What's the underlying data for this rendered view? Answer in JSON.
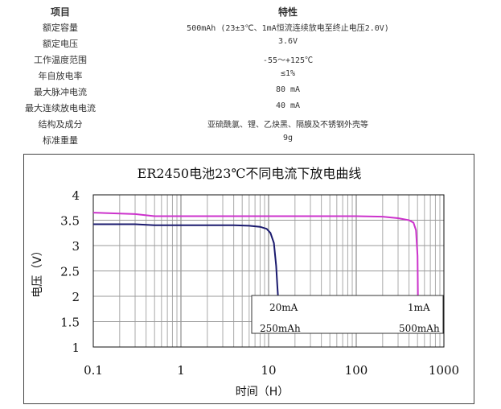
{
  "spec_table": {
    "header": {
      "label": "项目",
      "value": "特性"
    },
    "rows": [
      {
        "label": "额定容量",
        "value": "500mAh (23±3℃、1mA恒流连续放电至终止电压2.0V)"
      },
      {
        "label": "额定电压",
        "value": "3.6V"
      },
      {
        "label": "工作温度范围",
        "value": "-55～+125℃"
      },
      {
        "label": "年自放电率",
        "value": "≤1%"
      },
      {
        "label": "最大脉冲电流",
        "value": "80 mA"
      },
      {
        "label": "最大连续放电电流",
        "value": "40 mA"
      },
      {
        "label": "结构及成分",
        "value": "亚硫酰氯、锂、乙炔黑、隔膜及不锈钢外壳等"
      },
      {
        "label": "标准重量",
        "value": "9g"
      }
    ]
  },
  "chart_data": {
    "type": "line",
    "title": "ER2450电池23℃不同电流下放电曲线",
    "xlabel": "时间（H）",
    "ylabel": "电压（V）",
    "xscale": "log",
    "xlim": [
      0.1,
      1000
    ],
    "ylim": [
      1,
      4
    ],
    "xticks": [
      "0.1",
      "1",
      "10",
      "100",
      "1000"
    ],
    "yticks": [
      "1",
      "1.5",
      "2",
      "2.5",
      "3",
      "3.5",
      "4"
    ],
    "grid": true,
    "series": [
      {
        "name": "20mA",
        "capacity_label": "250mAh",
        "color": "#1a1a6e",
        "points": [
          [
            0.1,
            3.42
          ],
          [
            0.3,
            3.42
          ],
          [
            0.5,
            3.4
          ],
          [
            1,
            3.4
          ],
          [
            2,
            3.4
          ],
          [
            4,
            3.4
          ],
          [
            6,
            3.39
          ],
          [
            8,
            3.37
          ],
          [
            9.5,
            3.33
          ],
          [
            10.5,
            3.25
          ],
          [
            11.5,
            3.05
          ],
          [
            12.2,
            2.6
          ],
          [
            12.6,
            2.2
          ],
          [
            12.8,
            2.0
          ]
        ]
      },
      {
        "name": "1mA",
        "capacity_label": "500mAh",
        "color": "#cc33cc",
        "points": [
          [
            0.1,
            3.65
          ],
          [
            0.3,
            3.62
          ],
          [
            0.5,
            3.58
          ],
          [
            1,
            3.58
          ],
          [
            5,
            3.58
          ],
          [
            20,
            3.58
          ],
          [
            100,
            3.58
          ],
          [
            200,
            3.57
          ],
          [
            300,
            3.54
          ],
          [
            400,
            3.5
          ],
          [
            450,
            3.45
          ],
          [
            480,
            3.3
          ],
          [
            500,
            2.8
          ],
          [
            505,
            2.0
          ]
        ]
      }
    ]
  }
}
